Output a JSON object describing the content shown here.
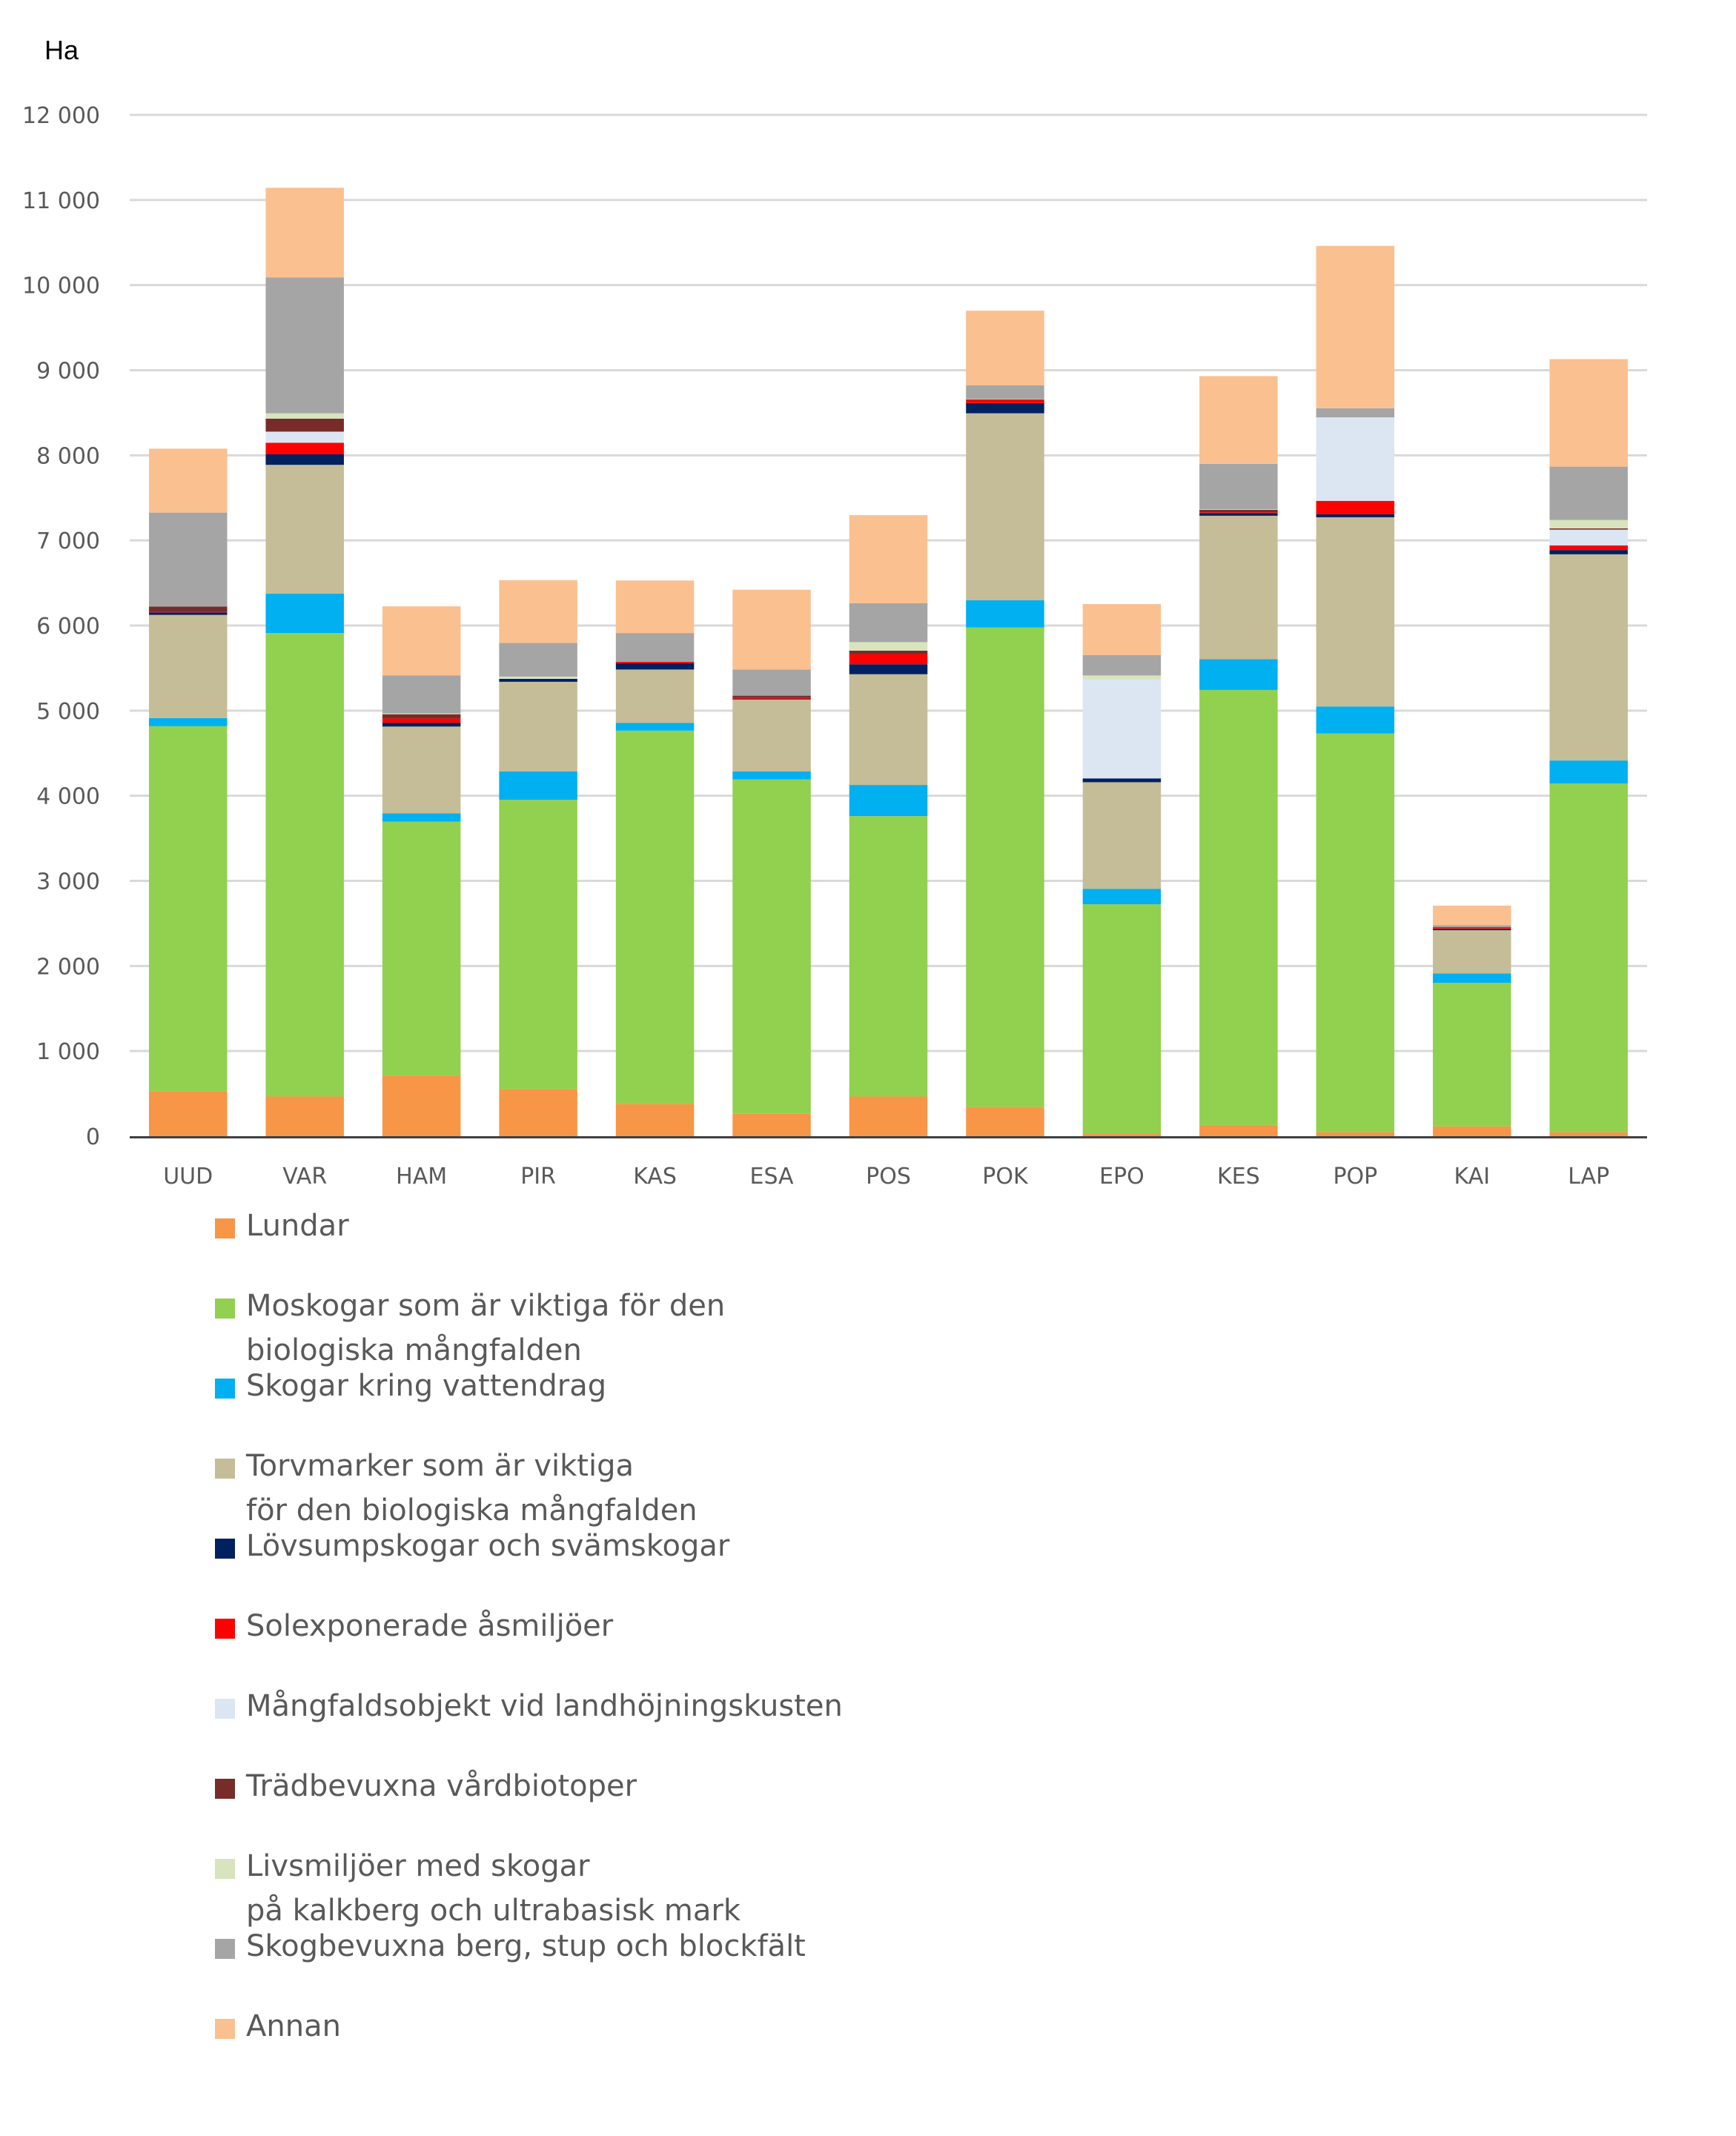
{
  "chart_data": {
    "type": "bar",
    "stacked": true,
    "title": "",
    "xlabel": "",
    "ylabel": "Ha",
    "ylim": [
      0,
      12000
    ],
    "yticks": [
      0,
      1000,
      2000,
      3000,
      4000,
      5000,
      6000,
      7000,
      8000,
      9000,
      10000,
      11000,
      12000
    ],
    "ytick_labels": [
      "0",
      "1 000",
      "2 000",
      "3 000",
      "4 000",
      "5 000",
      "6 000",
      "7 000",
      "8 000",
      "9 000",
      "10 000",
      "11 000",
      "12 000"
    ],
    "grid": true,
    "legend_position": "bottom",
    "categories": [
      "UUD",
      "VAR",
      "HAM",
      "PIR",
      "KAS",
      "ESA",
      "POS",
      "POK",
      "EPO",
      "KES",
      "POP",
      "KAI",
      "LAP"
    ],
    "series": [
      {
        "name": "Lundar",
        "color": "#F79646",
        "values": [
          528,
          466,
          713,
          554,
          378,
          264,
          466,
          343,
          26,
          132,
          47,
          114,
          47
        ]
      },
      {
        "name": "Moskogar som är viktiga för den\nbiologiska mångfalden",
        "color": "#92D050",
        "values": [
          4289,
          5446,
          2984,
          3398,
          4387,
          3927,
          3295,
          5633,
          2699,
          5111,
          4686,
          1687,
          4096
        ]
      },
      {
        "name": "Skogar kring vattendrag",
        "color": "#00B0F0",
        "values": [
          96,
          462,
          96,
          335,
          90,
          96,
          366,
          320,
          182,
          362,
          316,
          112,
          271
        ]
      },
      {
        "name": "Torvmarker som är viktiga\nför den biologiska mångfalden",
        "color": "#C4BD97",
        "values": [
          1212,
          1514,
          1020,
          1052,
          628,
          844,
          1301,
          2198,
          1252,
          1685,
          2223,
          507,
          2423
        ]
      },
      {
        "name": "Lövsumpskogar och svämskogar",
        "color": "#002060",
        "values": [
          30,
          124,
          45,
          35,
          75,
          10,
          117,
          120,
          45,
          30,
          35,
          15,
          50
        ]
      },
      {
        "name": "Solexponerade åsmiljöer",
        "color": "#FF0000",
        "values": [
          10,
          136,
          50,
          0,
          17,
          15,
          120,
          35,
          0,
          10,
          158,
          10,
          55
        ]
      },
      {
        "name": "Mångfaldsobjekt vid landhöjningskusten",
        "color": "#DCE6F2",
        "values": [
          0,
          130,
          0,
          0,
          0,
          0,
          0,
          0,
          1161,
          0,
          981,
          0,
          185
        ]
      },
      {
        "name": "Trädbevuxna vårdbiotoper",
        "color": "#772C2A",
        "values": [
          58,
          153,
          50,
          0,
          0,
          20,
          40,
          10,
          0,
          30,
          0,
          10,
          15
        ]
      },
      {
        "name": "Livsmiljöer med skogar\npå kalkberg och ultrabasisk mark",
        "color": "#D7E4BD",
        "values": [
          0,
          63,
          10,
          26,
          0,
          0,
          100,
          6,
          48,
          6,
          0,
          0,
          98
        ]
      },
      {
        "name": "Skogbevuxna berg, stup och blockfält",
        "color": "#A5A5A5",
        "values": [
          1104,
          1597,
          447,
          395,
          337,
          308,
          458,
          159,
          239,
          534,
          107,
          25,
          627
        ]
      },
      {
        "name": "Annan",
        "color": "#FAC090",
        "values": [
          751,
          1052,
          810,
          738,
          617,
          937,
          1034,
          875,
          600,
          1031,
          1908,
          229,
          1263
        ]
      }
    ]
  }
}
